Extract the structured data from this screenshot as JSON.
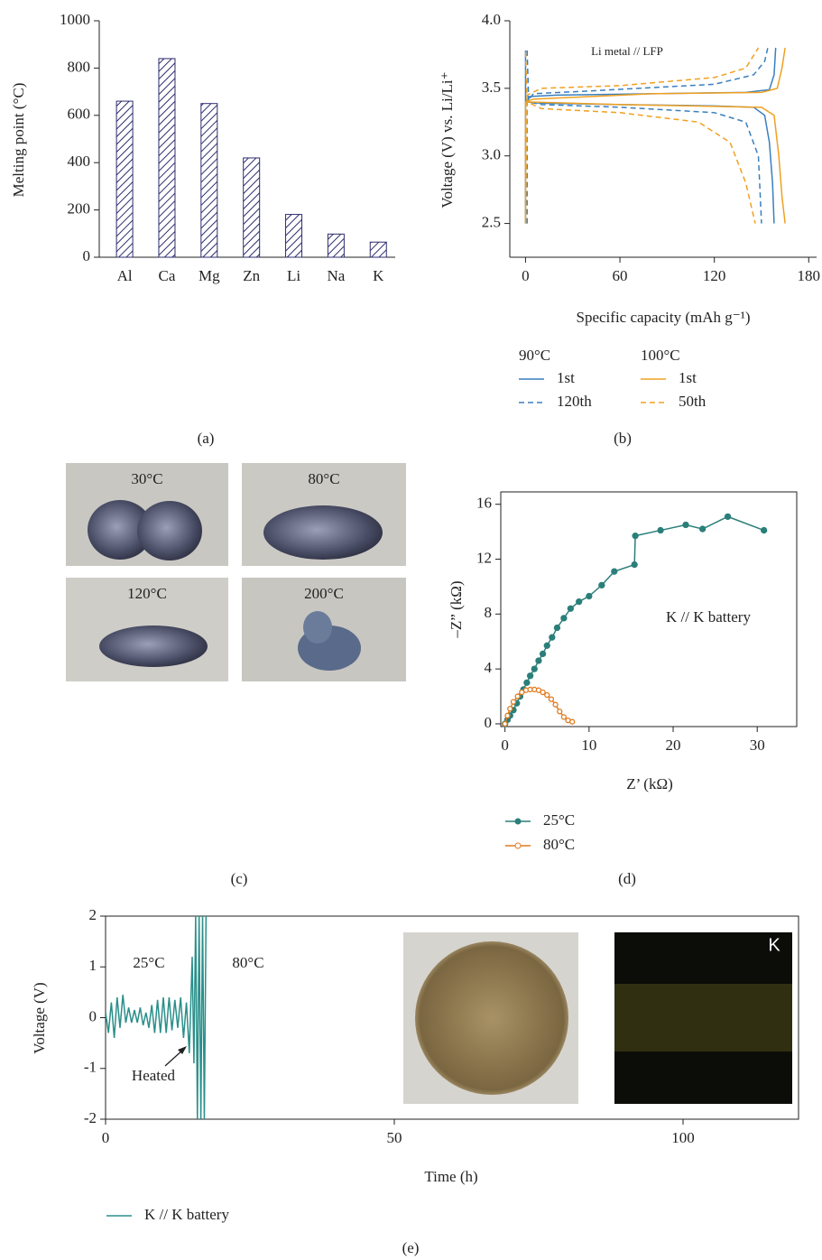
{
  "chart_data": [
    {
      "type": "bar",
      "panel": "(a)",
      "y_label": "Melting point (°C)",
      "categories": [
        "Al",
        "Ca",
        "Mg",
        "Zn",
        "Li",
        "Na",
        "K"
      ],
      "values": [
        660,
        840,
        650,
        420,
        181,
        98,
        64
      ],
      "color": "#2d2d6e",
      "hatch": true,
      "ylim": [
        0,
        1000
      ],
      "yticks": [
        0,
        200,
        400,
        600,
        800,
        1000
      ]
    },
    {
      "type": "line",
      "panel": "(b)",
      "annotation": "Li metal // LFP",
      "x_label": "Specific capacity (mAh g⁻¹)",
      "y_label": "Voltage (V) vs. Li/Li⁺",
      "xlim": [
        -10,
        185
      ],
      "xticks": [
        0,
        60,
        120,
        180
      ],
      "ylim": [
        2.25,
        4.0
      ],
      "yticks": [
        2.5,
        {
          "value": 3,
          "label": "3.0"
        },
        3.5,
        {
          "value": 4,
          "label": "4.0"
        }
      ],
      "legend_groups": [
        "90°C",
        "100°C"
      ],
      "series": [
        {
          "name": "1st",
          "color": "#3a7fbf",
          "dash": false,
          "x": [
            0,
            0,
            3,
            20,
            80,
            140,
            155,
            158,
            159,
            null,
            0,
            0,
            10,
            60,
            120,
            145,
            152,
            155,
            157,
            158
          ],
          "values": [
            2.5,
            3.4,
            3.44,
            3.45,
            3.46,
            3.47,
            3.49,
            3.6,
            3.8,
            null,
            3.78,
            3.4,
            3.39,
            3.38,
            3.37,
            3.36,
            3.3,
            3.1,
            2.8,
            2.5
          ]
        },
        {
          "name": "120th",
          "color": "#3a7fbf",
          "dash": true,
          "x": [
            1,
            1,
            5,
            40,
            120,
            145,
            152,
            154,
            null,
            1,
            2,
            10,
            60,
            120,
            140,
            148,
            150
          ],
          "values": [
            2.5,
            3.4,
            3.46,
            3.48,
            3.53,
            3.6,
            3.7,
            3.8,
            null,
            3.78,
            3.4,
            3.38,
            3.36,
            3.32,
            3.25,
            3.0,
            2.5
          ]
        },
        {
          "name": "1st",
          "color": "#f0a020",
          "dash": false,
          "x": [
            0,
            0,
            5,
            80,
            150,
            160,
            163,
            165,
            null,
            0,
            60,
            150,
            158,
            161,
            163,
            165
          ],
          "values": [
            2.5,
            3.4,
            3.42,
            3.46,
            3.47,
            3.5,
            3.65,
            3.8,
            null,
            3.4,
            3.38,
            3.36,
            3.3,
            3.0,
            2.7,
            2.5
          ]
        },
        {
          "name": "50th",
          "color": "#f0a020",
          "dash": true,
          "x": [
            0,
            1,
            10,
            60,
            120,
            140,
            148,
            null,
            0,
            1,
            10,
            60,
            110,
            130,
            140,
            146
          ],
          "values": [
            2.5,
            3.45,
            3.5,
            3.52,
            3.58,
            3.65,
            3.8,
            null,
            3.77,
            3.4,
            3.35,
            3.32,
            3.25,
            3.1,
            2.8,
            2.5
          ]
        }
      ]
    },
    {
      "type": "line",
      "marker": "circle",
      "panel": "(d)",
      "annotation": "K // K battery",
      "x_label": "Z’ (kΩ)",
      "y_label": "–Z” (kΩ)",
      "xlim": [
        -0.5,
        34.7
      ],
      "xticks": [
        0,
        10,
        20,
        30
      ],
      "ylim": [
        -0.2,
        16.9
      ],
      "yticks": [
        0,
        4,
        8,
        12,
        16
      ],
      "series": [
        {
          "name": "25°C",
          "color": "#2a7f7a",
          "filled": true,
          "x": [
            0,
            0.3,
            0.6,
            1,
            1.4,
            1.8,
            2.2,
            2.6,
            3,
            3.5,
            4,
            4.5,
            5,
            5.6,
            6.2,
            7,
            7.8,
            8.8,
            10,
            11.5,
            13,
            15.4,
            15.5,
            18.5,
            21.5,
            23.5,
            26.5,
            30.8
          ],
          "values": [
            0,
            0.3,
            0.6,
            1,
            1.5,
            2,
            2.5,
            3,
            3.5,
            4,
            4.6,
            5.1,
            5.7,
            6.3,
            7,
            7.7,
            8.4,
            8.9,
            9.3,
            10.1,
            11.1,
            11.6,
            13.7,
            14.1,
            14.5,
            14.2,
            15.1,
            14.1
          ]
        },
        {
          "name": "80°C",
          "color": "#e07b20",
          "filled": false,
          "x": [
            0,
            0.3,
            0.6,
            1,
            1.5,
            2,
            2.5,
            3,
            3.5,
            4,
            4.5,
            5,
            5.5,
            6,
            6.5,
            7,
            7.5,
            8
          ],
          "values": [
            0,
            0.6,
            1.1,
            1.6,
            2,
            2.3,
            2.45,
            2.5,
            2.5,
            2.45,
            2.3,
            2.1,
            1.8,
            1.4,
            0.9,
            0.5,
            0.25,
            0.15
          ]
        }
      ]
    },
    {
      "type": "line",
      "panel": "(e)",
      "annotations": [
        "25°C",
        "80°C",
        "Heated"
      ],
      "inset_label": "K",
      "x_label": "Time (h)",
      "y_label": "Voltage (V)",
      "xlim": [
        0,
        120
      ],
      "xticks": [
        0,
        50,
        100
      ],
      "ylim": [
        -2,
        2
      ],
      "yticks": [
        -2,
        -1,
        0,
        1,
        2
      ],
      "series": [
        {
          "name": "K // K battery",
          "color": "#2a8f8a",
          "dash": false,
          "x": [
            0,
            0.5,
            1,
            1.5,
            2,
            2.5,
            3,
            3.5,
            4,
            4.5,
            5,
            5.5,
            6,
            6.5,
            7,
            7.5,
            8,
            8.5,
            9,
            9.5,
            10,
            10.5,
            11,
            11.5,
            12,
            12.5,
            13,
            13.5,
            14,
            14.5,
            15,
            15.3,
            15.6,
            15.9,
            16.2,
            16.5,
            16.8,
            17.1,
            17.4
          ],
          "values": [
            0.1,
            -0.3,
            0.3,
            -0.4,
            0.4,
            -0.2,
            0.45,
            -0.1,
            0.2,
            -0.1,
            0.15,
            -0.1,
            0.2,
            -0.15,
            0.1,
            -0.2,
            0.25,
            -0.3,
            0.35,
            -0.3,
            0.4,
            -0.3,
            0.4,
            -0.25,
            0.35,
            -0.2,
            0.4,
            -0.4,
            0.3,
            -0.7,
            1.2,
            -0.9,
            2,
            -2,
            2,
            -2,
            2,
            -2,
            2
          ]
        }
      ]
    }
  ],
  "photos": {
    "labels": [
      "30°C",
      "80°C",
      "120°C",
      "200°C"
    ],
    "panel": "(c)"
  }
}
